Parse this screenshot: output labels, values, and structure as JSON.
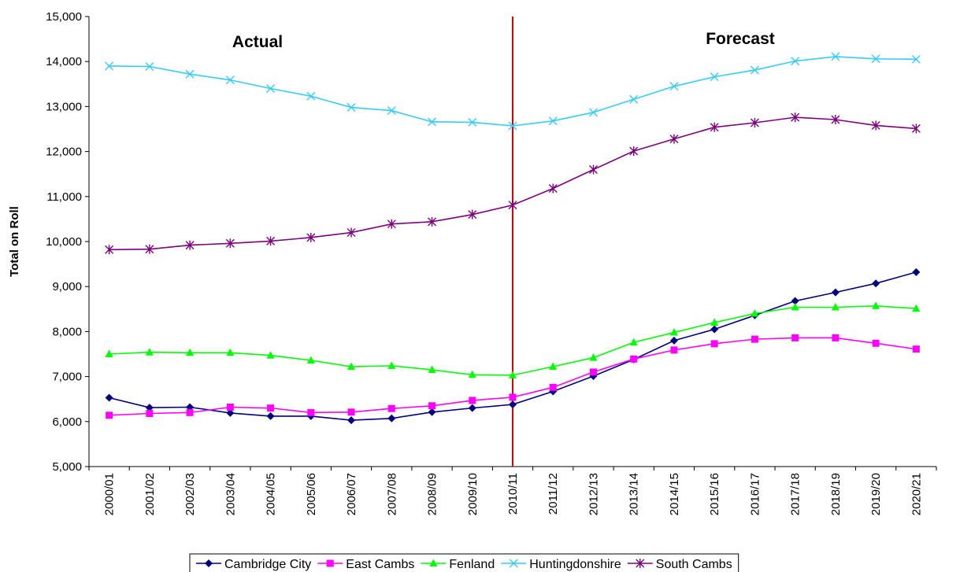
{
  "chart_data": {
    "type": "line",
    "title": "",
    "xlabel": "",
    "ylabel": "Total on Roll",
    "ylim": [
      5000,
      15000
    ],
    "ytick_step": 1000,
    "grid": false,
    "legend_position": "bottom",
    "categories": [
      "2000/01",
      "2001/02",
      "2002/03",
      "2003/04",
      "2004/05",
      "2005/06",
      "2006/07",
      "2007/08",
      "2008/09",
      "2009/10",
      "2010/11",
      "2011/12",
      "2012/13",
      "2013/14",
      "2014/15",
      "2015/16",
      "2016/17",
      "2017/18",
      "2018/19",
      "2019/20",
      "2020/21"
    ],
    "divider": {
      "at_category": "2010/11",
      "color": "#e00000"
    },
    "regions": [
      {
        "label": "Actual",
        "side": "left"
      },
      {
        "label": "Forecast",
        "side": "right"
      }
    ],
    "series": [
      {
        "name": "Cambridge City",
        "color": "#000080",
        "marker": "diamond",
        "values": [
          6530,
          6310,
          6320,
          6190,
          6120,
          6120,
          6030,
          6070,
          6210,
          6300,
          6380,
          6670,
          7010,
          7380,
          7800,
          8050,
          8360,
          8680,
          8870,
          9070,
          9320
        ]
      },
      {
        "name": "East Cambs",
        "color": "#ff00ff",
        "marker": "square",
        "values": [
          6140,
          6180,
          6200,
          6320,
          6300,
          6200,
          6210,
          6290,
          6350,
          6470,
          6540,
          6760,
          7100,
          7390,
          7590,
          7730,
          7830,
          7860,
          7860,
          7740,
          7610
        ]
      },
      {
        "name": "Fenland",
        "color": "#00ff00",
        "marker": "triangle",
        "values": [
          7500,
          7540,
          7530,
          7530,
          7470,
          7360,
          7220,
          7240,
          7150,
          7040,
          7030,
          7220,
          7420,
          7760,
          7980,
          8200,
          8400,
          8540,
          8540,
          8570,
          8510
        ]
      },
      {
        "name": "Huntingdonshire",
        "color": "#33ccff",
        "marker": "x",
        "values": [
          13900,
          13890,
          13720,
          13590,
          13400,
          13230,
          12980,
          12910,
          12660,
          12650,
          12570,
          12680,
          12870,
          13160,
          13450,
          13660,
          13810,
          14010,
          14110,
          14060,
          14050
        ]
      },
      {
        "name": "South Cambs",
        "color": "#800080",
        "marker": "star",
        "values": [
          9820,
          9830,
          9920,
          9960,
          10010,
          10090,
          10200,
          10390,
          10440,
          10600,
          10810,
          11180,
          11600,
          12010,
          12280,
          12540,
          12640,
          12760,
          12710,
          12580,
          12510
        ]
      }
    ]
  }
}
